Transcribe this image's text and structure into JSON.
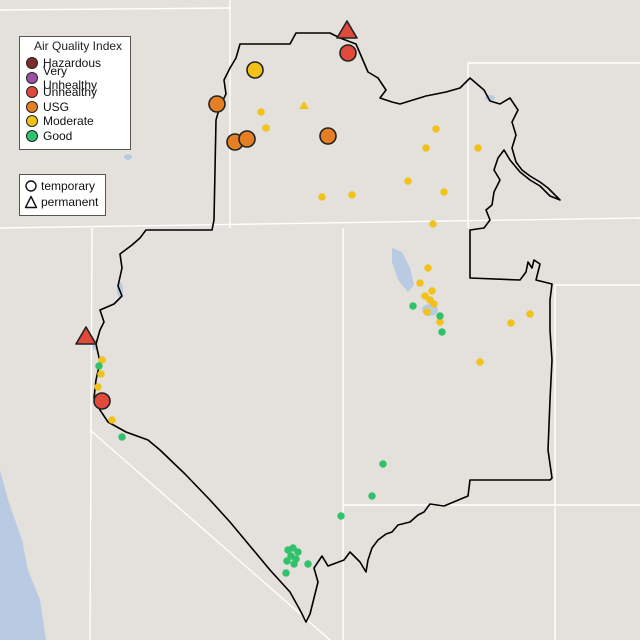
{
  "legend": {
    "title": "Air Quality Index",
    "categories": [
      {
        "label": "Hazardous",
        "color": "#7e2e28"
      },
      {
        "label": "Very Unhealthy",
        "color": "#9b52a6"
      },
      {
        "label": "Unhealthy",
        "color": "#e04a3c"
      },
      {
        "label": "USG",
        "color": "#e47f24"
      },
      {
        "label": "Moderate",
        "color": "#f2c218"
      },
      {
        "label": "Good",
        "color": "#2fc26a"
      }
    ],
    "types": [
      {
        "label": "temporary",
        "shape": "circle"
      },
      {
        "label": "permanent",
        "shape": "triangle"
      }
    ]
  },
  "colors": {
    "land": "#e4e0db",
    "water": "#b8cbe3",
    "boundary": "#000000",
    "stateline": "#ffffff"
  }
}
